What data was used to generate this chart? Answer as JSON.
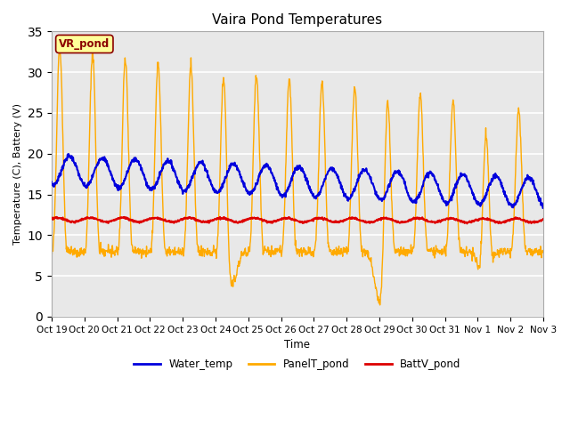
{
  "title": "Vaira Pond Temperatures",
  "ylabel": "Temperature (C), Battery (V)",
  "xlabel": "Time",
  "xlim_labels": [
    "Oct 19",
    "Oct 20",
    "Oct 21",
    "Oct 22",
    "Oct 23",
    "Oct 24",
    "Oct 25",
    "Oct 26",
    "Oct 27",
    "Oct 28",
    "Oct 29",
    "Oct 30",
    "Oct 31",
    "Nov 1",
    "Nov 2",
    "Nov 3"
  ],
  "ylim": [
    0,
    35
  ],
  "yticks": [
    0,
    5,
    10,
    15,
    20,
    25,
    30,
    35
  ],
  "fig_bg_color": "#ffffff",
  "plot_bg_color": "#e8e8e8",
  "grid_color": "#ffffff",
  "water_temp_color": "#0000dd",
  "panel_temp_color": "#ffaa00",
  "batt_color": "#dd0000",
  "annotation_text": "VR_pond",
  "annotation_bg": "#ffff99",
  "annotation_border": "#8b0000",
  "legend_labels": [
    "Water_temp",
    "PanelT_pond",
    "BattV_pond"
  ],
  "n_days": 15,
  "n_per_day": 96
}
